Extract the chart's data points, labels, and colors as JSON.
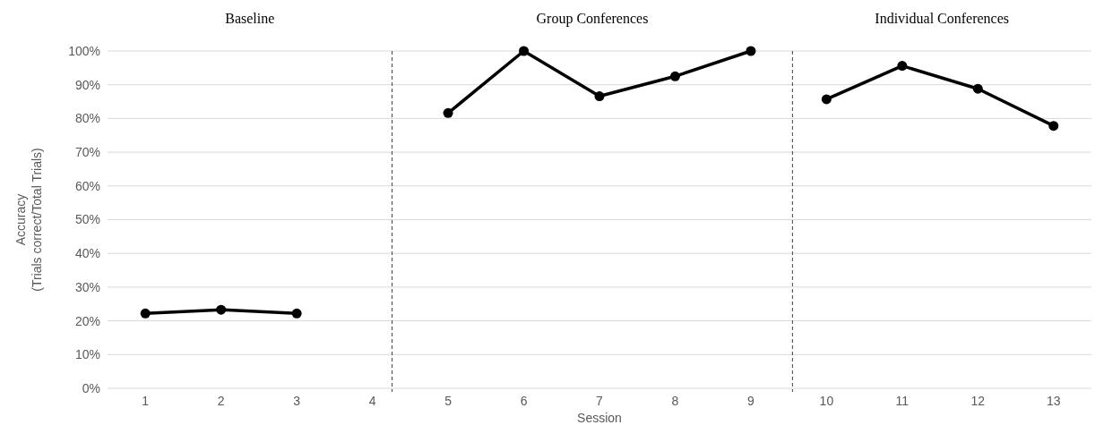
{
  "chart_data": {
    "type": "line",
    "xlabel": "Session",
    "ylabel": "Accuracy\n(Trials correct/Total Trials)",
    "series": [
      {
        "color": "#000000",
        "x": [
          1,
          2,
          3
        ],
        "values": [
          22.2,
          23.3,
          22.2
        ]
      },
      {
        "color": "#000000",
        "x": [
          5,
          6,
          7,
          8,
          9
        ],
        "values": [
          81.6,
          100,
          86.6,
          92.5,
          100
        ]
      },
      {
        "color": "#000000",
        "x": [
          10,
          11,
          12,
          13
        ],
        "values": [
          85.7,
          95.6,
          88.8,
          77.8
        ]
      }
    ],
    "xlim": [
      0.5,
      13.5
    ],
    "xticks": [
      1,
      2,
      3,
      4,
      5,
      6,
      7,
      8,
      9,
      10,
      11,
      12,
      13
    ],
    "ylim": [
      0,
      100
    ],
    "yticks": [
      {
        "value": 0,
        "label": "0%"
      },
      {
        "value": 10,
        "label": "10%"
      },
      {
        "value": 20,
        "label": "20%"
      },
      {
        "value": 30,
        "label": "30%"
      },
      {
        "value": 40,
        "label": "40%"
      },
      {
        "value": 50,
        "label": "50%"
      },
      {
        "value": 60,
        "label": "60%"
      },
      {
        "value": 70,
        "label": "70%"
      },
      {
        "value": 80,
        "label": "80%"
      },
      {
        "value": 90,
        "label": "90%"
      },
      {
        "value": 100,
        "label": "100%"
      }
    ],
    "grid": "y",
    "marker": "circle",
    "line_style": "solid",
    "ref_lines": [
      {
        "axis": "x",
        "value": 4.26,
        "color": "#404040",
        "line_style": "dashed"
      },
      {
        "axis": "x",
        "value": 9.55,
        "color": "#404040",
        "line_style": "dashed"
      }
    ],
    "annotations": [
      "Baseline",
      "Group Conferences",
      "Individual Conferences"
    ]
  }
}
